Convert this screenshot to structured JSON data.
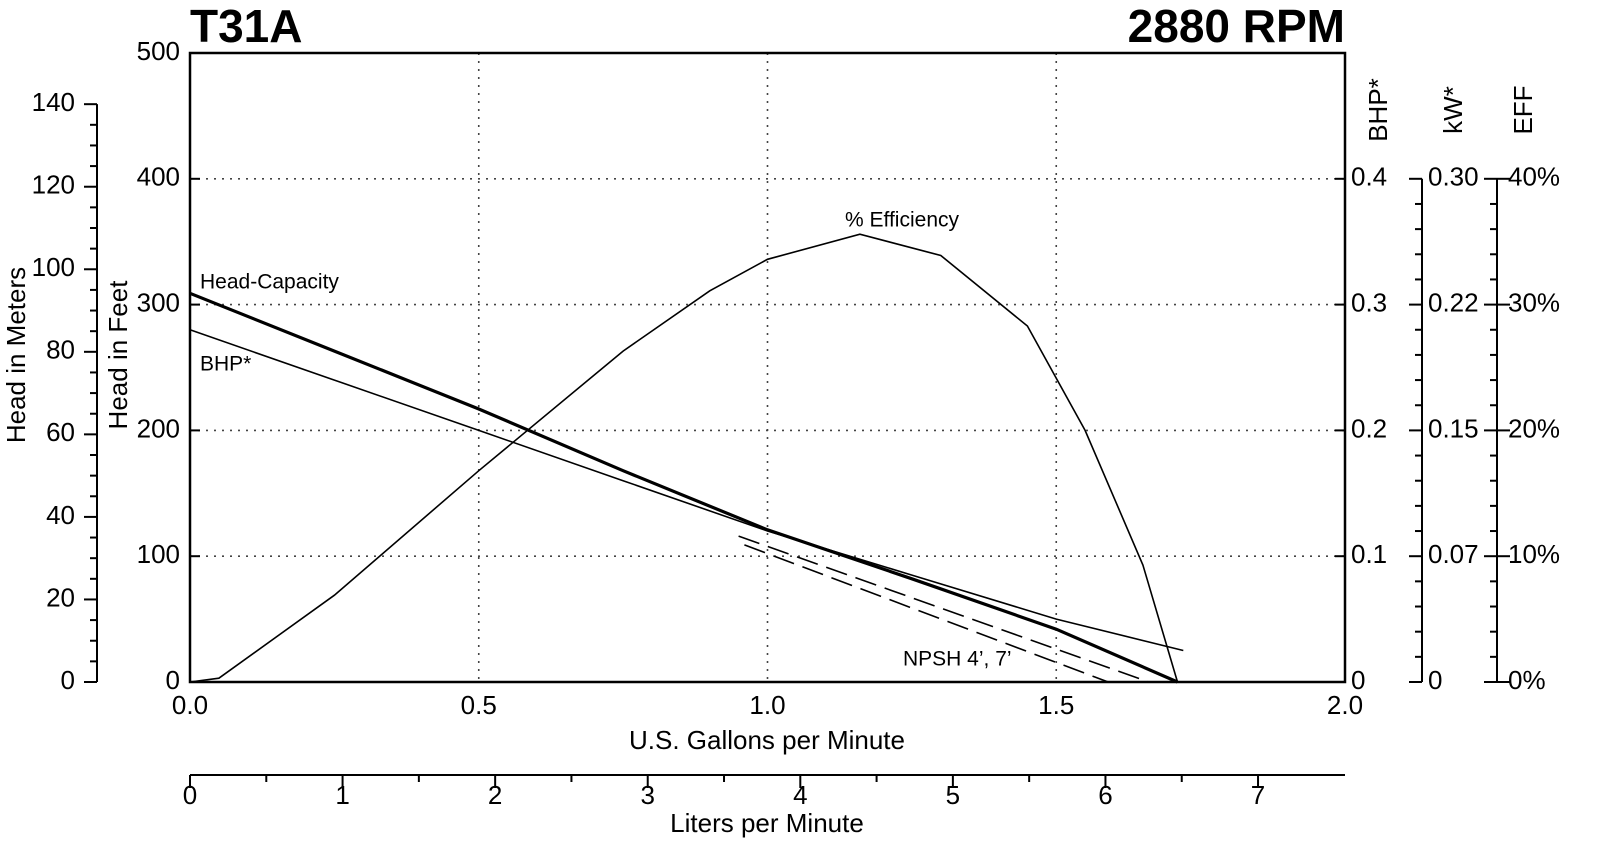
{
  "chart_data": {
    "type": "line",
    "title": "T31A",
    "subtitle": "2880 RPM",
    "x_label": "U.S. Gallons per Minute",
    "xlim": [
      0,
      2.0
    ],
    "xticks": [
      {
        "value": 0,
        "label": "0.0"
      },
      0.5,
      {
        "value": 1,
        "label": "1.0"
      },
      1.5,
      {
        "value": 2,
        "label": "2.0"
      }
    ],
    "x2_label": "Liters per Minute",
    "x2lim": [
      0,
      7.57
    ],
    "x2ticks": [
      0,
      1,
      2,
      3,
      4,
      5,
      6,
      7
    ],
    "y_label": "Head in Feet",
    "ylim": [
      0,
      500
    ],
    "yticks": [
      0,
      100,
      200,
      300,
      400,
      500
    ],
    "y_meters_label": "Head in Meters",
    "y_meters_lim": [
      0,
      152.4
    ],
    "y_meters_ticks": [
      0,
      20,
      40,
      60,
      80,
      100,
      120,
      140
    ],
    "y2_label": "BHP*",
    "y2lim": [
      0,
      0.5
    ],
    "y2ticks": [
      0,
      0.1,
      0.2,
      0.3,
      0.4
    ],
    "y3_label": "kW*",
    "y3lim": [
      0,
      0.373
    ],
    "y3ticks": [
      0,
      {
        "value": 0.0746,
        "label": "0.07"
      },
      {
        "value": 0.1492,
        "label": "0.15"
      },
      {
        "value": 0.2238,
        "label": "0.22"
      },
      {
        "value": 0.2984,
        "label": "0.30"
      }
    ],
    "y4_label": "EFF",
    "y4lim": [
      0,
      50
    ],
    "y4ticks": [
      {
        "value": 0,
        "label": "0%"
      },
      {
        "value": 10,
        "label": "10%"
      },
      {
        "value": 20,
        "label": "20%"
      },
      {
        "value": 30,
        "label": "30%"
      },
      {
        "value": 40,
        "label": "40%"
      }
    ],
    "grid": true,
    "annotation": "NPSH  4’, 7’",
    "series": [
      {
        "name": "Head-Capacity",
        "color": "#000000",
        "axis": "y",
        "width": 3.2,
        "dashed": false,
        "x": [
          0,
          0.25,
          0.5,
          0.75,
          1.0,
          1.25,
          1.5,
          1.71
        ],
        "values": [
          309,
          263,
          217,
          168,
          121,
          82,
          42,
          0
        ]
      },
      {
        "name": "BHP*",
        "color": "#000000",
        "axis": "y2",
        "width": 1.6,
        "dashed": false,
        "x": [
          0,
          0.25,
          0.5,
          0.75,
          1.0,
          1.25,
          1.5,
          1.72
        ],
        "values": [
          0.28,
          0.24,
          0.2,
          0.16,
          0.12,
          0.085,
          0.05,
          0.025
        ]
      },
      {
        "name": "% Efficiency",
        "color": "#000000",
        "axis": "y4",
        "width": 1.6,
        "dashed": false,
        "x": [
          0,
          0.05,
          0.25,
          0.5,
          0.75,
          0.9,
          1.0,
          1.16,
          1.3,
          1.45,
          1.55,
          1.65,
          1.71
        ],
        "values": [
          0,
          0.3,
          6.9,
          16.8,
          26.3,
          31.1,
          33.6,
          35.6,
          33.9,
          28.3,
          20,
          9.3,
          0
        ]
      },
      {
        "color": "#000000",
        "axis": "y",
        "width": 1.6,
        "dashed": true,
        "x": [
          0.95,
          1.66
        ],
        "values": [
          116,
          0
        ]
      },
      {
        "color": "#000000",
        "axis": "y",
        "width": 1.6,
        "dashed": true,
        "x": [
          0.96,
          1.59
        ],
        "values": [
          109,
          0
        ]
      }
    ]
  }
}
